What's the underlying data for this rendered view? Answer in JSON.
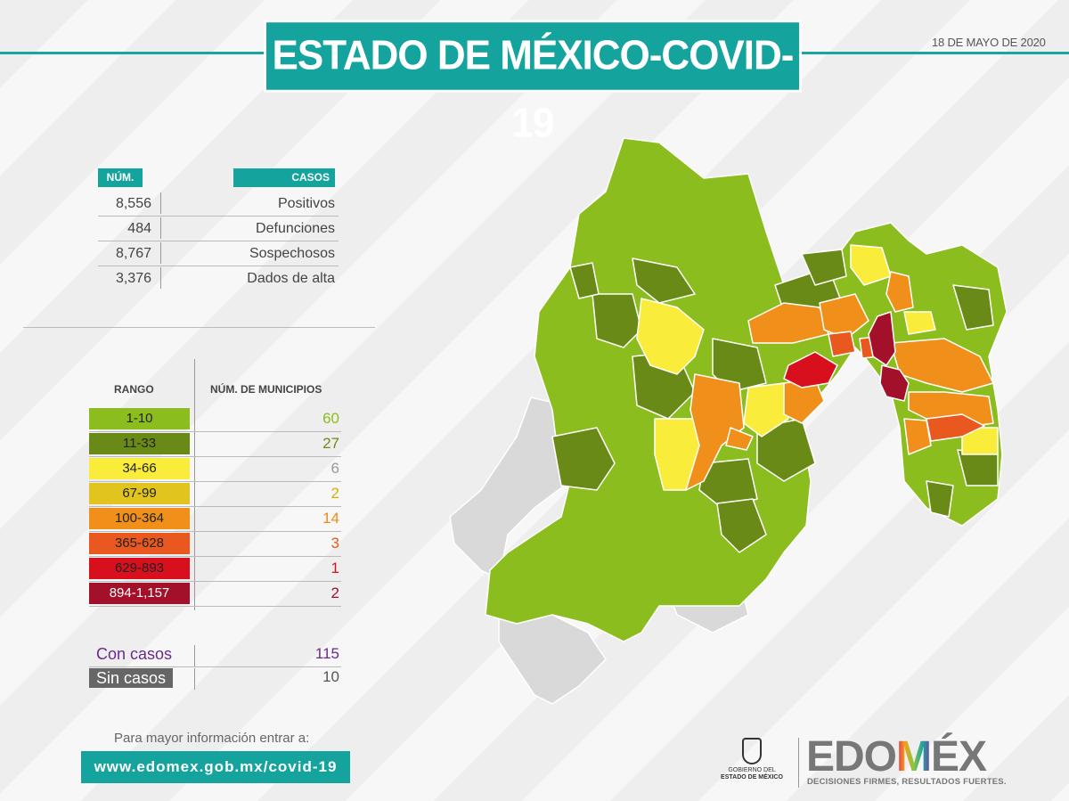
{
  "title": "ESTADO DE MÉXICO-COVID-19",
  "date": "18 DE MAYO DE 2020",
  "cases_table": {
    "col_num": "NÚM.",
    "col_cases": "CASOS",
    "rows": [
      {
        "num": "8,556",
        "label": "Positivos"
      },
      {
        "num": "484",
        "label": "Defunciones"
      },
      {
        "num": "8,767",
        "label": "Sospechosos"
      },
      {
        "num": "3,376",
        "label": "Dados de alta"
      }
    ]
  },
  "range_table": {
    "col_range": "RANGO",
    "col_count": "NÚM. DE MUNICIPIOS",
    "rows": [
      {
        "range": "1-10",
        "count": "60",
        "color": "#8cbd1e",
        "text_color": "#8cbd1e"
      },
      {
        "range": "11-33",
        "count": "27",
        "color": "#6a8a17",
        "text_color": "#6a8a17"
      },
      {
        "range": "34-66",
        "count": "6",
        "color": "#f9ec3a",
        "text_color": "#999999"
      },
      {
        "range": "67-99",
        "count": "2",
        "color": "#e2c41e",
        "text_color": "#d6b100"
      },
      {
        "range": "100-364",
        "count": "14",
        "color": "#f0901a",
        "text_color": "#ec8b14"
      },
      {
        "range": "365-628",
        "count": "3",
        "color": "#e8581f",
        "text_color": "#e8581f"
      },
      {
        "range": "629-893",
        "count": "1",
        "color": "#d8101d",
        "text_color": "#d8101d"
      },
      {
        "range": "894-1,157",
        "count": "2",
        "color": "#a3102a",
        "text_color": "#a3102a"
      }
    ]
  },
  "summary": [
    {
      "label": "Con casos",
      "value": "115",
      "color": "#6a2a8c"
    },
    {
      "label": "Sin casos",
      "value": "10",
      "color": "#555555"
    }
  ],
  "info_text": "Para mayor información entrar a:",
  "url": "www.edomex.gob.mx/covid-19",
  "gov_label_1": "GOBIERNO DEL",
  "gov_label_2": "ESTADO DE MÉXICO",
  "logo_prefix": "EDO",
  "logo_m": "M",
  "logo_suffix": "ÉX",
  "tagline": "DECISIONES FIRMES, RESULTADOS FUERTES.",
  "colors": {
    "teal": "#15a39e",
    "no_data": "#d9d9d9"
  }
}
